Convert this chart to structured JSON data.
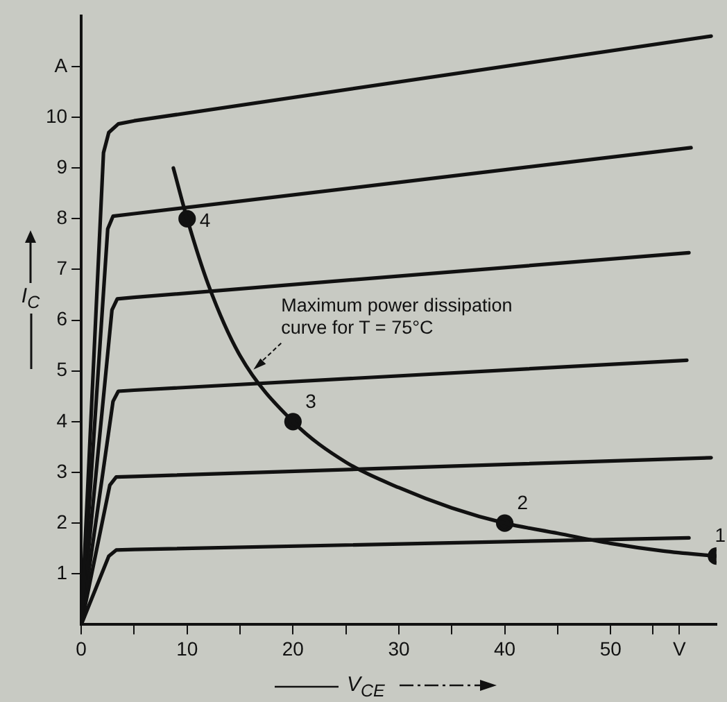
{
  "chart_data": {
    "type": "line",
    "xlabel": "V$_{CE}$",
    "ylabel": "I$_{C}$",
    "xlim": [
      0,
      60
    ],
    "ylim": [
      0,
      12
    ],
    "xticks": [
      0,
      {
        "value": 5,
        "label": null
      },
      10,
      {
        "value": 15,
        "label": null
      },
      20,
      {
        "value": 25,
        "label": null
      },
      30,
      {
        "value": 35,
        "label": null
      },
      40,
      {
        "value": 45,
        "label": null
      },
      50,
      {
        "value": 54,
        "label": null
      },
      {
        "value": 56.5,
        "label": "V"
      }
    ],
    "yticks": [
      1,
      2,
      3,
      4,
      5,
      6,
      7,
      8,
      9,
      10,
      {
        "value": 11,
        "label": "A"
      }
    ],
    "grid": false,
    "legend": false,
    "marker": "none",
    "line_style": "solid",
    "series": [
      {
        "color": "#111111",
        "x": [
          0,
          2.1,
          2.6,
          3.5,
          5,
          59.5
        ],
        "values": [
          0,
          9.3,
          9.7,
          9.87,
          9.93,
          11.6
        ]
      },
      {
        "color": "#111111",
        "x": [
          0,
          2.5,
          3,
          5,
          57.6
        ],
        "values": [
          0,
          7.8,
          8.05,
          8.1,
          9.4
        ]
      },
      {
        "color": "#111111",
        "x": [
          0,
          2.9,
          3.4,
          5,
          57.4
        ],
        "values": [
          0,
          6.2,
          6.42,
          6.45,
          7.33
        ]
      },
      {
        "color": "#111111",
        "x": [
          0,
          3,
          3.5,
          5,
          57.2
        ],
        "values": [
          0,
          4.4,
          4.6,
          4.62,
          5.21
        ]
      },
      {
        "color": "#111111",
        "x": [
          0,
          2.7,
          3.3,
          5,
          59.5
        ],
        "values": [
          0,
          2.75,
          2.91,
          2.92,
          3.29
        ]
      },
      {
        "color": "#111111",
        "x": [
          0,
          2.6,
          3.3,
          5,
          57.4
        ],
        "values": [
          0,
          1.35,
          1.47,
          1.48,
          1.71
        ]
      },
      {
        "color": "#111111",
        "x": [
          8.7,
          10,
          12,
          15,
          20,
          25,
          30,
          35,
          40,
          45,
          50,
          55,
          60
        ],
        "values": [
          9.0,
          8.0,
          6.7,
          5.3,
          4.0,
          3.2,
          2.7,
          2.3,
          2.0,
          1.8,
          1.6,
          1.45,
          1.35
        ]
      },
      {
        "type": "scatter",
        "marker": "circle",
        "color": "#111111",
        "x": [
          10,
          20,
          40,
          60
        ],
        "values": [
          8,
          4,
          2,
          1.35
        ]
      }
    ],
    "annotations": [
      {
        "text": "Maximum power dissipation curve for T = 75°C",
        "x": 16,
        "y": 5
      },
      {
        "text": "4",
        "x": 10,
        "y": 8
      },
      {
        "text": "3",
        "x": 20,
        "y": 4
      },
      {
        "text": "2",
        "x": 40,
        "y": 2
      },
      {
        "text": "1",
        "x": 60,
        "y": 1.35
      }
    ]
  }
}
